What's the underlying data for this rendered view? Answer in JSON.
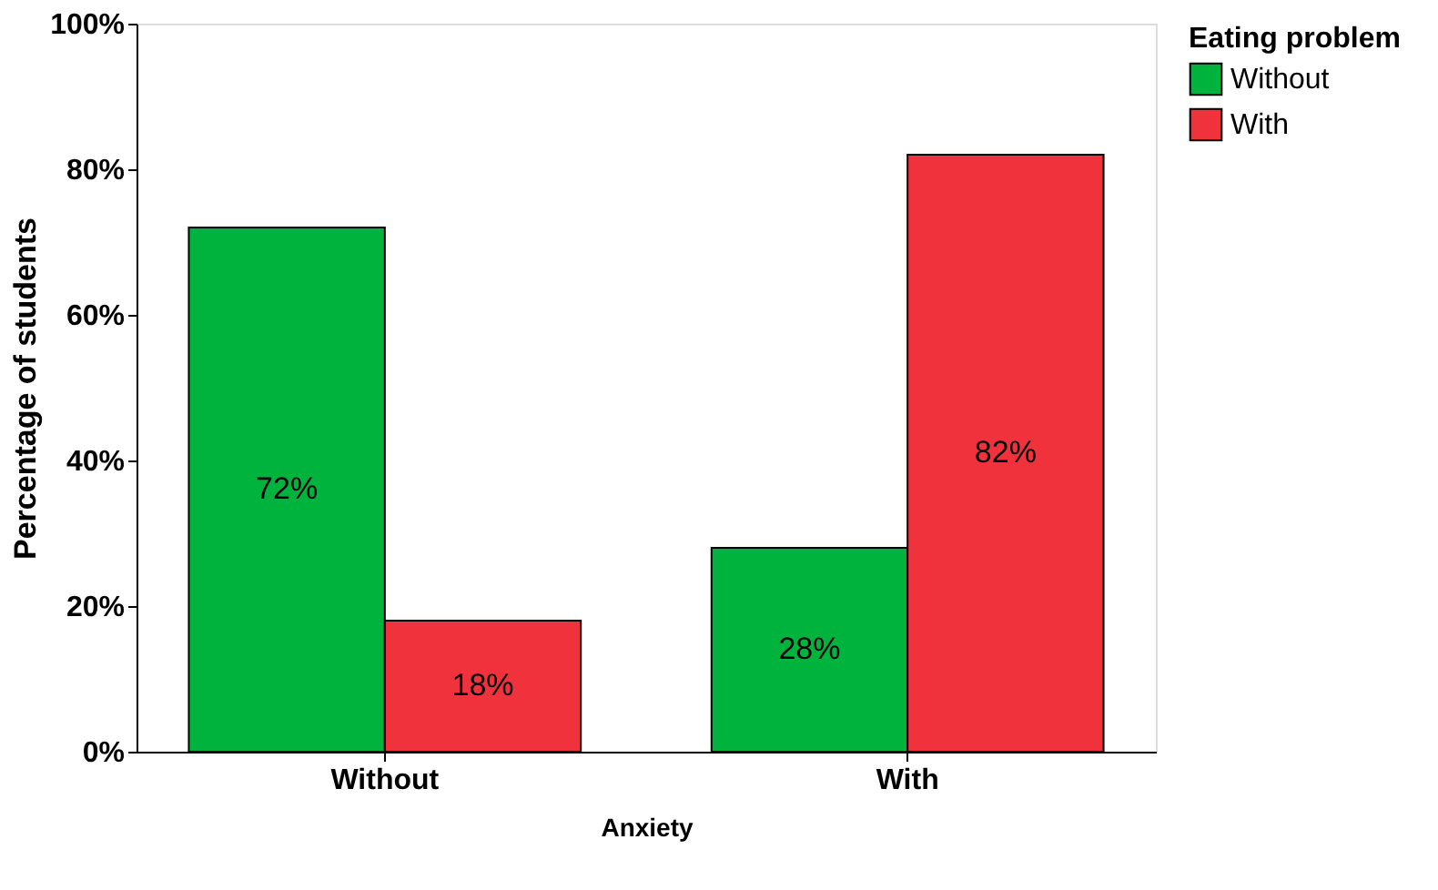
{
  "chart_data": {
    "type": "bar",
    "xlabel": "Anxiety",
    "ylabel": "Percentage of students",
    "legend_title": "Eating problem",
    "legend": "top right",
    "categories": [
      "Without",
      "With"
    ],
    "series": [
      {
        "name": "Without",
        "color": "#00b33c",
        "values": [
          72,
          28
        ],
        "value_labels": [
          "72%",
          "28%"
        ]
      },
      {
        "name": "With",
        "color": "#f0323c",
        "values": [
          18,
          82
        ],
        "value_labels": [
          "18%",
          "82%"
        ]
      }
    ],
    "ylim": [
      0,
      100
    ],
    "yticks": [
      {
        "value": 0,
        "label": "0%"
      },
      {
        "value": 20,
        "label": "20%"
      },
      {
        "value": 40,
        "label": "40%"
      },
      {
        "value": 60,
        "label": "60%"
      },
      {
        "value": 80,
        "label": "80%"
      },
      {
        "value": 100,
        "label": "100%"
      }
    ],
    "grid": false
  }
}
